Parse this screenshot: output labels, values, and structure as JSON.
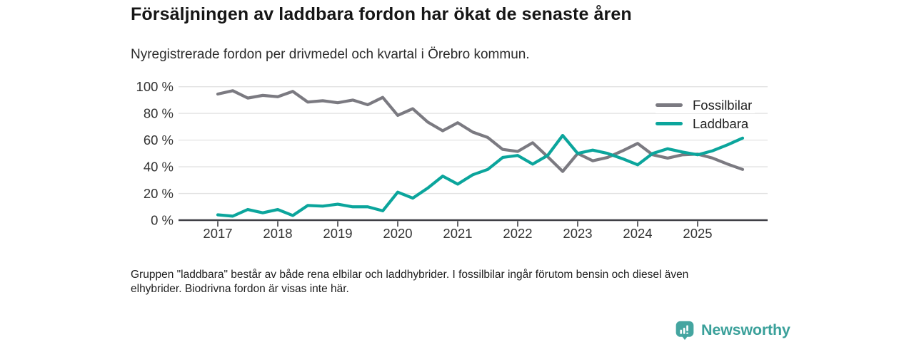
{
  "header": {
    "title": "Försäljningen av laddbara fordon har ökat de senaste åren",
    "subtitle": "Nyregistrerade fordon per drivmedel och kvartal i Örebro kommun."
  },
  "chart_data": {
    "type": "line",
    "x_unit": "quarter",
    "x_range": "2017 Q1 – 2025 Q4",
    "x_ticks": [
      "2017",
      "2018",
      "2019",
      "2020",
      "2021",
      "2022",
      "2023",
      "2024",
      "2025"
    ],
    "y_ticks": [
      "0 %",
      "20 %",
      "40 %",
      "60 %",
      "80 %",
      "100 %"
    ],
    "ylim": [
      0,
      100
    ],
    "grid": true,
    "legend_position": "top-right",
    "axis_color": "#3f3f45",
    "grid_color": "#e2e2e2",
    "tick_label_color": "#333333",
    "series": [
      {
        "name": "Fossilbilar",
        "color": "#7b7a81",
        "values": [
          94.5,
          97,
          91.5,
          93.5,
          92.5,
          96.5,
          88.5,
          89.5,
          88,
          90,
          86.5,
          92,
          78.5,
          83.5,
          73.5,
          67,
          73,
          66,
          62,
          53,
          51.5,
          58,
          47.5,
          36.5,
          50,
          44.5,
          47,
          52,
          57.5,
          49,
          46.5,
          49,
          49.5,
          46.5,
          42,
          38
        ]
      },
      {
        "name": "Laddbara",
        "color": "#0ba59c",
        "values": [
          4,
          3,
          8,
          5.5,
          8,
          3.5,
          11,
          10.5,
          12,
          10,
          10,
          7,
          21,
          16.5,
          24,
          33,
          27,
          34,
          38,
          47,
          48.5,
          42,
          48.5,
          63.5,
          50,
          52.5,
          50,
          46,
          41.5,
          50,
          53.5,
          51,
          49,
          52,
          56.5,
          61.5
        ]
      }
    ]
  },
  "footnote": {
    "lines": [
      "Gruppen \"laddbara\" består av både rena elbilar och laddhybrider. I fossilbilar ingår förutom bensin och diesel även",
      "elhybrider. Biodrivna fordon är visas inte här."
    ]
  },
  "brand": {
    "name": "Newsworthy",
    "icon_color": "#44a5a0",
    "text_color": "#3aa09a"
  }
}
